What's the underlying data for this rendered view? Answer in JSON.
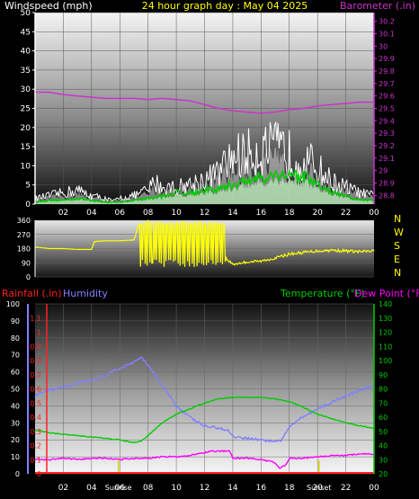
{
  "colors": {
    "wind": "#ffffff",
    "gust_fill": "#ffffff",
    "avg_wind": "#00cc00",
    "avg_fill": "#b8f0b8",
    "barometer": "#cc33cc",
    "direction_night": "#ffff00",
    "direction_day": "#d4d400",
    "rain": "#ff2020",
    "humidity": "#8080ff",
    "temperature": "#00cc00",
    "dewpoint": "#ff00ff",
    "sun": "#d4d400"
  },
  "panel1": {
    "title_left": "Windspeed (mph)",
    "title_center": "24 hour graph day : May 04 2025",
    "title_right": "Barometer (.in)"
  },
  "panel2": {
    "compass": [
      "N",
      "W",
      "S",
      "E",
      "N"
    ]
  },
  "panel3": {
    "title_rain": "Rainfall (.in)",
    "title_humidity": "Humidity",
    "title_temp": "Temperature (°F)",
    "title_dew": "Dew Point (°F)",
    "sunrise_label": "Sunrise",
    "sunset_label": "Sunset"
  },
  "chart_data": [
    {
      "type": "line",
      "title": "24 hour graph day : May 04 2025",
      "xlabel": "",
      "ylabel": "Windspeed (mph)",
      "y2label": "Barometer (.in)",
      "x_ticks": [
        "02",
        "04",
        "06",
        "08",
        "10",
        "12",
        "14",
        "16",
        "18",
        "20",
        "22",
        "00"
      ],
      "xlim": [
        0,
        24
      ],
      "ylim": [
        0,
        50
      ],
      "y_ticks": [
        0,
        5,
        10,
        15,
        20,
        25,
        30,
        35,
        40,
        45,
        50
      ],
      "y2lim": [
        28.73,
        30.27
      ],
      "y2_ticks": [
        28.8,
        28.9,
        29.0,
        29.1,
        29.2,
        29.3,
        29.4,
        29.5,
        29.6,
        29.7,
        29.8,
        29.9,
        30.0,
        30.1,
        30.2
      ],
      "y2_tick_labels": [
        "28.8",
        "28.9",
        "29",
        "29.1",
        "29.2",
        "29.3",
        "29.4",
        "29.5",
        "29.6",
        "29.7",
        "29.8",
        "29.9",
        "30",
        "30.1",
        "30.2"
      ],
      "series": [
        {
          "key": "gust",
          "axis": "y",
          "x": [
            0,
            1,
            2,
            3,
            4,
            5,
            5.5,
            6,
            7,
            8,
            8.5,
            9,
            10,
            11,
            12,
            13,
            14,
            15,
            16,
            17,
            18,
            19,
            20,
            21,
            22,
            23,
            24
          ],
          "values": [
            2,
            3,
            4,
            5,
            3,
            2,
            1,
            2,
            3,
            5,
            8,
            6,
            6,
            7,
            9,
            11,
            17,
            18,
            19,
            20,
            18,
            16,
            13,
            8,
            6,
            4,
            3
          ]
        },
        {
          "key": "avg_wind",
          "axis": "y",
          "x": [
            0,
            1,
            2,
            3,
            4,
            5,
            6,
            7,
            8,
            9,
            10,
            11,
            12,
            13,
            14,
            15,
            16,
            17,
            18,
            19,
            20,
            21,
            22,
            23,
            24
          ],
          "values": [
            0.5,
            1,
            1,
            1.5,
            1,
            0.5,
            0.5,
            1,
            1.5,
            2,
            3,
            3,
            3.5,
            4,
            5,
            6,
            7,
            7.5,
            8,
            7,
            5,
            3,
            2,
            1,
            1
          ]
        },
        {
          "key": "barometer",
          "axis": "y2",
          "x": [
            0,
            1,
            2,
            3,
            4,
            5,
            6,
            7,
            8,
            9,
            10,
            11,
            12,
            13,
            14,
            15,
            16,
            17,
            18,
            19,
            20,
            21,
            22,
            23,
            24
          ],
          "values": [
            29.63,
            29.63,
            29.61,
            29.6,
            29.59,
            29.58,
            29.58,
            29.58,
            29.57,
            29.58,
            29.57,
            29.56,
            29.53,
            29.5,
            29.48,
            29.47,
            29.46,
            29.47,
            29.49,
            29.5,
            29.52,
            29.53,
            29.54,
            29.55,
            29.55
          ]
        }
      ]
    },
    {
      "type": "line",
      "title": "",
      "xlabel": "",
      "ylabel": "",
      "xlim": [
        0,
        24
      ],
      "ylim": [
        0,
        360
      ],
      "y_ticks": [
        0,
        90,
        180,
        270,
        360
      ],
      "series": [
        {
          "key": "wind_direction",
          "x": [
            0,
            0.5,
            1,
            2,
            3,
            4,
            4.2,
            5,
            6,
            7,
            7.3,
            7.5,
            8,
            9,
            10,
            11,
            12,
            13,
            13.5,
            14,
            15,
            16,
            17,
            18,
            19,
            20,
            21,
            22,
            23,
            24
          ],
          "values": [
            190,
            185,
            180,
            180,
            175,
            175,
            225,
            230,
            230,
            235,
            320,
            340,
            100,
            340,
            60,
            330,
            120,
            340,
            120,
            80,
            95,
            100,
            120,
            145,
            155,
            165,
            170,
            165,
            160,
            165
          ]
        }
      ]
    },
    {
      "type": "line",
      "title": "",
      "xlabel": "",
      "ylabel": "Humidity",
      "x_ticks": [
        "02",
        "04",
        "06",
        "08",
        "10",
        "12",
        "14",
        "16",
        "18",
        "20",
        "22",
        "00"
      ],
      "xlim": [
        0,
        24
      ],
      "ylim": [
        0,
        100
      ],
      "y_ticks": [
        0,
        10,
        20,
        30,
        40,
        50,
        60,
        70,
        80,
        90,
        100
      ],
      "rain_lim": [
        0,
        1.2
      ],
      "rain_ticks": [
        0,
        0.1,
        0.2,
        0.3,
        0.4,
        0.5,
        0.6,
        0.7,
        0.8,
        0.9,
        1.0,
        1.1
      ],
      "rain_tick_labels": [
        "0",
        "0.1",
        "0.2",
        "0.3",
        "0.4",
        "0.5",
        "0.6",
        "0.7",
        "0.8",
        "0.9",
        "1",
        "1.1"
      ],
      "temp_lim": [
        20,
        140
      ],
      "temp_ticks": [
        20,
        30,
        40,
        50,
        60,
        70,
        80,
        90,
        100,
        110,
        120,
        130,
        140
      ],
      "series": [
        {
          "key": "humidity",
          "axis": "hum",
          "x": [
            0,
            1,
            2,
            3,
            4,
            5,
            6,
            7,
            7.5,
            8,
            9,
            10,
            11,
            12,
            13,
            13.8,
            14,
            15,
            16,
            17,
            17.5,
            18,
            19,
            20,
            21,
            22,
            23,
            24
          ],
          "values": [
            46,
            49,
            51,
            53,
            55,
            58,
            62,
            66,
            69,
            64,
            52,
            40,
            33,
            28,
            27,
            25,
            22,
            21,
            20,
            19,
            20,
            28,
            34,
            38,
            42,
            46,
            49,
            52
          ]
        },
        {
          "key": "temperature",
          "axis": "temp",
          "x": [
            0,
            1,
            2,
            3,
            4,
            5,
            6,
            7,
            7.5,
            8,
            9,
            10,
            11,
            12,
            13,
            14,
            15,
            16,
            17,
            18,
            19,
            20,
            21,
            22,
            23,
            24
          ],
          "values": [
            51,
            49,
            48,
            47,
            46,
            45,
            44,
            42,
            43,
            47,
            56,
            62,
            66,
            70,
            73,
            74,
            74,
            74,
            73,
            71,
            67,
            62,
            59,
            56,
            54,
            52
          ]
        },
        {
          "key": "dewpoint",
          "axis": "temp",
          "x": [
            0,
            1,
            2,
            3,
            4,
            5,
            6,
            7,
            8,
            9,
            10,
            11,
            12,
            12.5,
            13,
            13.8,
            14,
            15,
            16,
            17,
            17.3,
            17.7,
            18,
            19,
            20,
            21,
            22,
            23,
            24
          ],
          "values": [
            30,
            30,
            31,
            30,
            31,
            31,
            30,
            31,
            31,
            32,
            32,
            33,
            35,
            36,
            36,
            36,
            31,
            31,
            30,
            28,
            24,
            26,
            31,
            31,
            32,
            33,
            33,
            34,
            34
          ]
        },
        {
          "key": "rainfall",
          "axis": "rain",
          "x": [
            0,
            24
          ],
          "values": [
            0,
            0
          ]
        }
      ],
      "sunrise_hour": 5.9,
      "sunset_hour": 20.1
    }
  ]
}
